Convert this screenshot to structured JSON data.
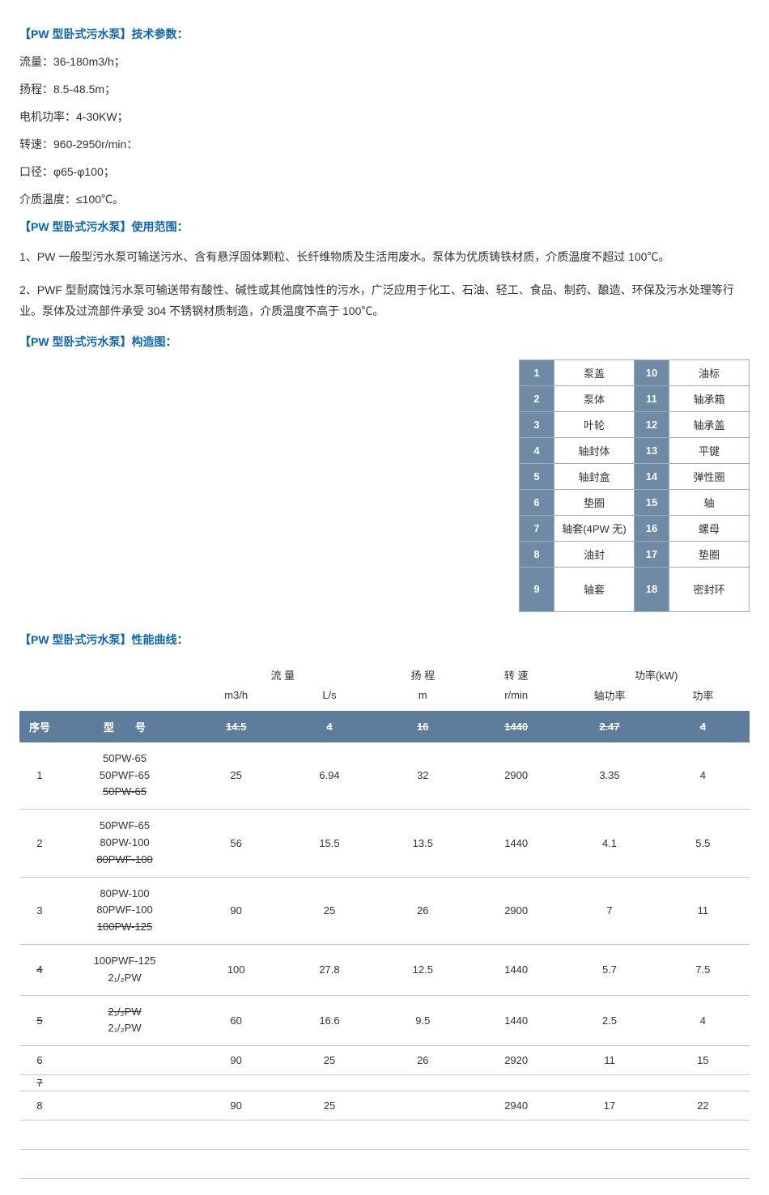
{
  "headings": {
    "tech_params": "【PW 型卧式污水泵】技术参数：",
    "usage": "【PW 型卧式污水泵】使用范围：",
    "structure": "【PW 型卧式污水泵】构造图：",
    "perf_curve": "【PW 型卧式污水泵】性能曲线："
  },
  "params": {
    "p1": "流量：36-180m3/h；",
    "p2": "扬程：8.5-48.5m；",
    "p3": "电机功率：4-30KW；",
    "p4": "转速：960-2950r/min：",
    "p5": "口径：φ65-φ100；",
    "p6": "介质温度：≤100℃。"
  },
  "usage": {
    "u1": "1、PW 一般型污水泵可输送污水、含有悬浮固体颗粒、长纤维物质及生活用废水。泵体为优质铸铁材质，介质温度不超过 100℃。",
    "u2": "2、PWF 型耐腐蚀污水泵可输送带有酸性、碱性或其他腐蚀性的污水，广泛应用于化工、石油、轻工、食品、制药、酿造、环保及污水处理等行业。泵体及过流部件承受 304 不锈钢材质制造，介质温度不高于 100℃。"
  },
  "structure": {
    "rows": [
      {
        "i1": "1",
        "n1": "泵盖",
        "i2": "10",
        "n2": "油标"
      },
      {
        "i1": "2",
        "n1": "泵体",
        "i2": "11",
        "n2": "轴承箱"
      },
      {
        "i1": "3",
        "n1": "叶轮",
        "i2": "12",
        "n2": "轴承盖"
      },
      {
        "i1": "4",
        "n1": "轴封体",
        "i2": "13",
        "n2": "平键"
      },
      {
        "i1": "5",
        "n1": "轴封盒",
        "i2": "14",
        "n2": "弹性圈"
      },
      {
        "i1": "6",
        "n1": "垫圈",
        "i2": "15",
        "n2": "轴"
      },
      {
        "i1": "7",
        "n1": "轴套(4PW 无)",
        "i2": "16",
        "n2": "螺母"
      },
      {
        "i1": "8",
        "n1": "油封",
        "i2": "17",
        "n2": "垫圈"
      },
      {
        "i1": "9",
        "n1": "轴套",
        "i2": "18",
        "n2": "密封环"
      }
    ]
  },
  "perf": {
    "group_labels": {
      "flow": "流 量",
      "head": "扬 程",
      "speed": "转 速",
      "power": "功率(kW)"
    },
    "sub_labels": {
      "m3h": "m3/h",
      "ls": "L/s",
      "m": "m",
      "rmin": "r/min",
      "shaft_power": "轴功率",
      "power": "功率"
    },
    "band": {
      "idx": "序号",
      "model": "型　　号",
      "v1": "14.5",
      "v2": "4",
      "v3": "16",
      "v4": "1440",
      "v5": "2.47",
      "v6": "4"
    },
    "rows": [
      {
        "idx": "1",
        "model_lines": [
          "50PW-65",
          "50PWF-65"
        ],
        "trailing_strike": "50PW-65",
        "d": [
          "25",
          "6.94",
          "32",
          "2900",
          "3.35",
          "4"
        ]
      },
      {
        "idx": "2",
        "model_lines": [
          "50PWF-65",
          "80PW-100"
        ],
        "trailing_strike": "80PWF-100",
        "d": [
          "56",
          "15.5",
          "13.5",
          "1440",
          "4.1",
          "5.5"
        ]
      },
      {
        "idx": "3",
        "model_lines": [
          "80PW-100",
          "80PWF-100"
        ],
        "trailing_strike": "100PW-125",
        "d": [
          "90",
          "25",
          "26",
          "2900",
          "7",
          "11"
        ]
      },
      {
        "idx": "4",
        "idx_strike": true,
        "model_lines": [
          "100PWF-125",
          "2₁/₂PW"
        ],
        "trailing_strike": "",
        "d": [
          "100",
          "27.8",
          "12.5",
          "1440",
          "5.7",
          "7.5"
        ]
      },
      {
        "idx": "5",
        "idx_strike": true,
        "model_lines_strike": [
          "2₁/₂PW"
        ],
        "model_lines": [
          "2₁/₂PW"
        ],
        "d": [
          "60",
          "16.6",
          "9.5",
          "1440",
          "2.5",
          "4"
        ]
      },
      {
        "idx": "6",
        "d": [
          "90",
          "25",
          "26",
          "2920",
          "11",
          "15"
        ]
      },
      {
        "idx": "7",
        "idx_strike": true,
        "d": []
      },
      {
        "idx": "8",
        "d": [
          "90",
          "25",
          "",
          "2940",
          "17",
          "22"
        ]
      }
    ]
  },
  "colors": {
    "heading": "#0b66b0",
    "band_bg": "#5e7c9c",
    "struct_idx_bg": "#6e8aa5",
    "border": "#c8c8c8"
  }
}
